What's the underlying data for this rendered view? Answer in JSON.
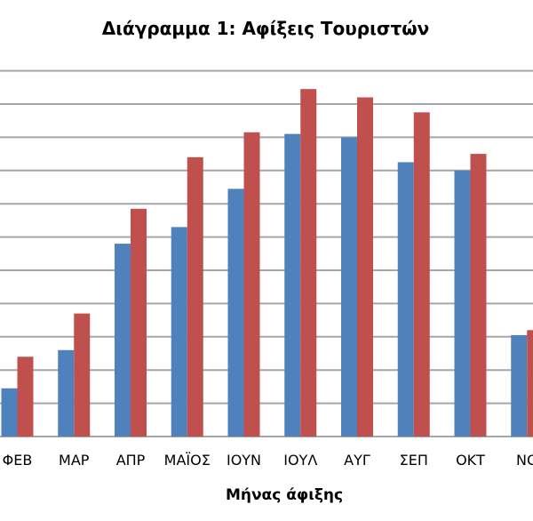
{
  "chart_data": {
    "type": "bar",
    "title": "Διάγραμμα 1: Αφίξεις Τουριστών",
    "xlabel": "Μήνας άφιξης",
    "ylabel": "",
    "categories": [
      "ΦΕΒ",
      "ΜΑΡ",
      "ΑΠΡ",
      "ΜΑΪΟΣ",
      "ΙΟΥΝ",
      "ΙΟΥΛ",
      "ΑΥΓ",
      "ΣΕΠ",
      "ΟΚΤ",
      "ΝΟ"
    ],
    "series": [
      {
        "values": [
          1.45,
          2.6,
          5.8,
          6.3,
          7.45,
          9.1,
          9.0,
          8.25,
          8.0,
          3.05
        ],
        "color": "#4f81bd"
      },
      {
        "values": [
          2.4,
          3.7,
          6.85,
          8.4,
          9.15,
          10.45,
          10.2,
          9.75,
          8.5,
          3.2
        ],
        "color": "#c0504d"
      }
    ],
    "ylim": [
      0,
      11
    ],
    "grid": true,
    "legend": "none"
  }
}
